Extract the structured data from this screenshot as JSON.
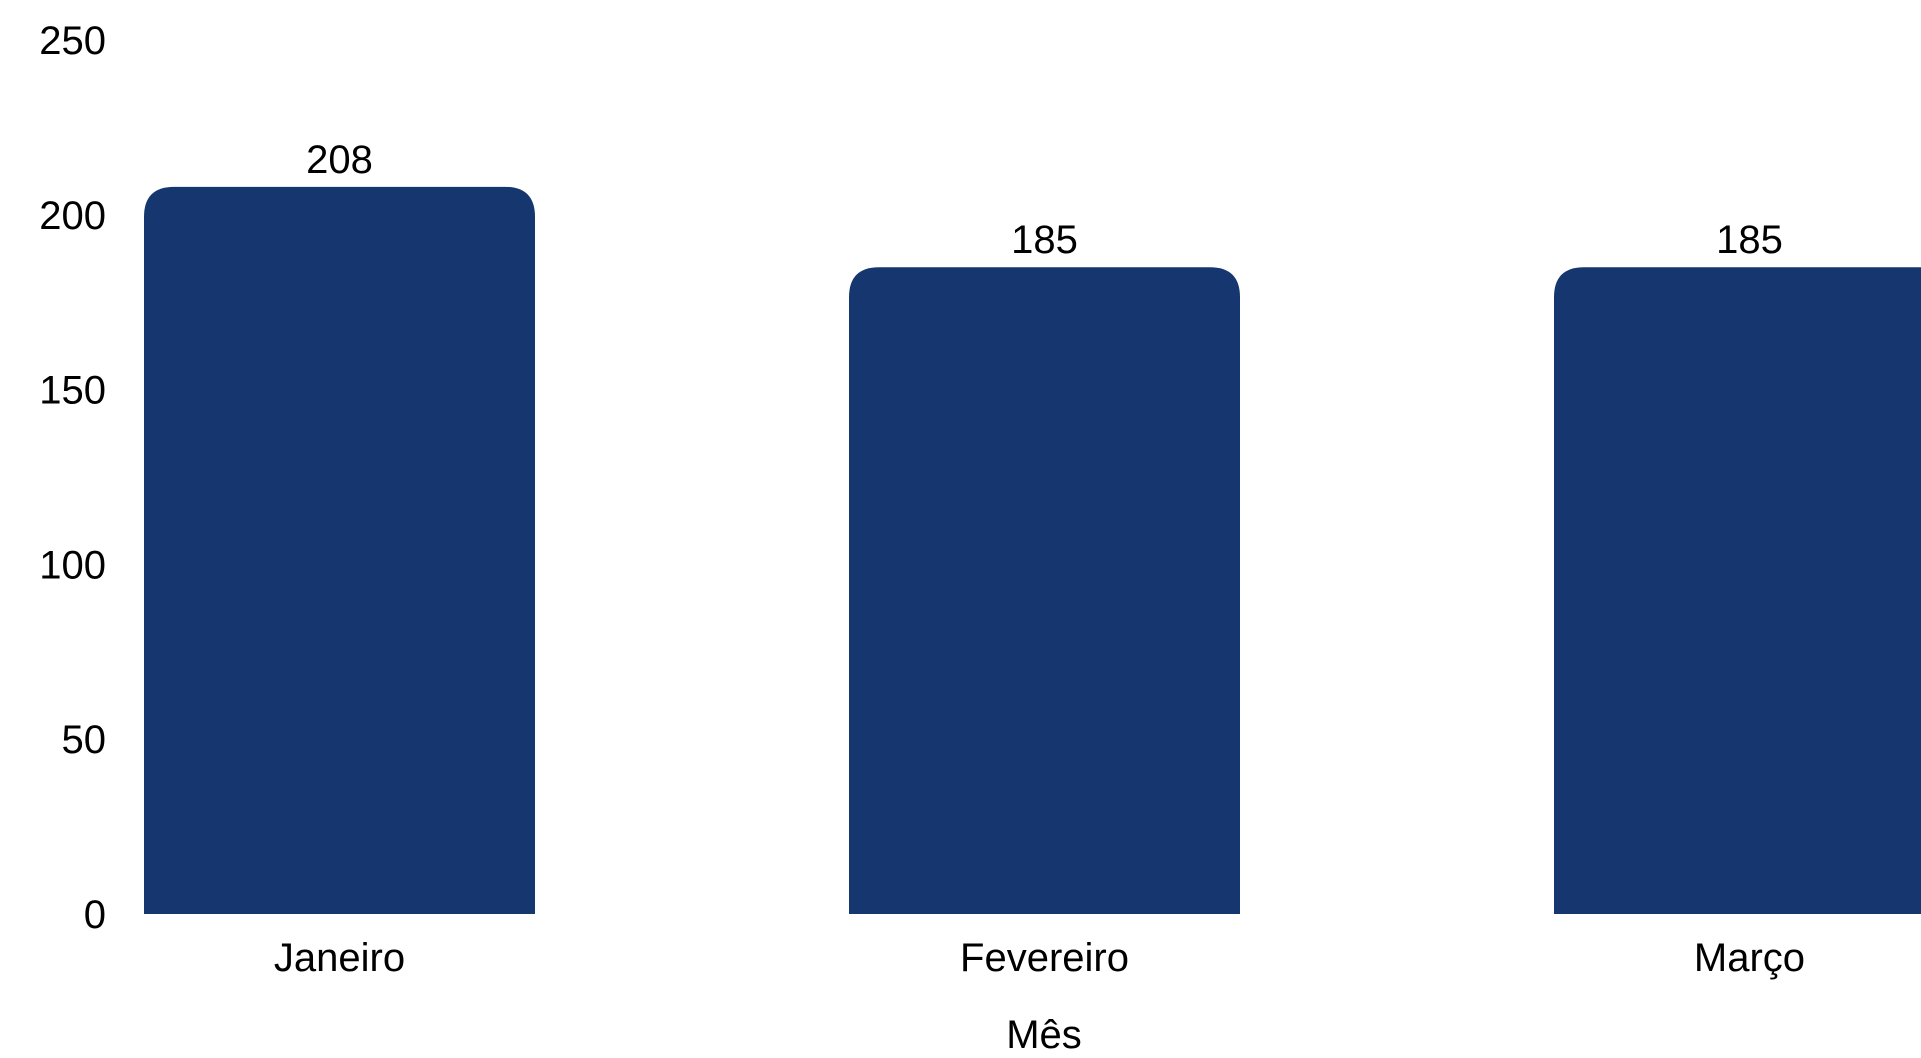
{
  "chart_data": {
    "type": "bar",
    "categories": [
      "Janeiro",
      "Fevereiro",
      "Março"
    ],
    "values": [
      208,
      185,
      185
    ],
    "data_labels": [
      "208",
      "185",
      "185"
    ],
    "xlabel": "Mês",
    "ylabel": "",
    "ylim": [
      0,
      250
    ],
    "yticks": [
      0,
      50,
      100,
      150,
      200,
      250
    ],
    "ytick_labels": [
      "0",
      "50",
      "100",
      "150",
      "200",
      "250"
    ],
    "bar_color": "#15366E",
    "grid": false,
    "legend": false
  }
}
